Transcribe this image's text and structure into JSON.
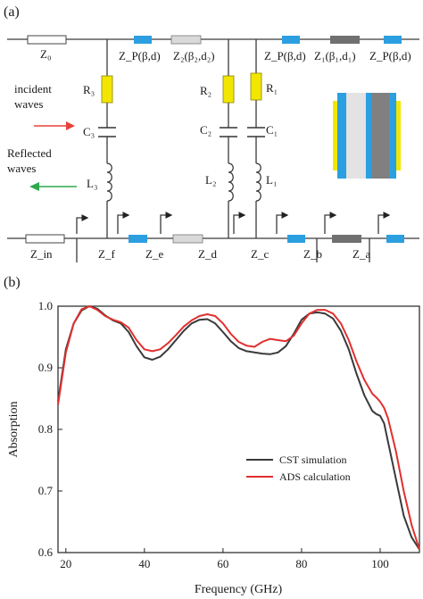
{
  "panel_a": {
    "label": "(a)",
    "z0": "Z₀",
    "zp": "Z_P(β,d)",
    "z2": "Z₂(β₂,d₂)",
    "z1": "Z₁(β₁,d₁)",
    "r3": "R₃",
    "c3": "C₃",
    "l3": "L₃",
    "r2": "R₂",
    "c2": "C₂",
    "l2": "L₂",
    "r1": "R₁",
    "c1": "C₁",
    "l1": "L₁",
    "incident_line1": "incident",
    "incident_line2": "waves",
    "reflected_line1": "Reflected",
    "reflected_line2": "waves",
    "zin": "Z_in",
    "zf": "Z_f",
    "ze": "Z_e",
    "zd": "Z_d",
    "zc": "Z_c",
    "zb": "Z_b",
    "za": "Z_a",
    "colors": {
      "blue_block": "#2b9fe0",
      "light_block": "#d9d9d9",
      "dark_block": "#707070",
      "resistor": "#f2e600",
      "incident_arrow": "#e8423a",
      "reflected_arrow": "#2ea84a"
    }
  },
  "panel_b": {
    "label": "(b)",
    "chart_data": {
      "type": "line",
      "xlabel": "Frequency (GHz)",
      "ylabel": "Absorption",
      "xlim": [
        18,
        110
      ],
      "ylim": [
        0.6,
        1.0
      ],
      "xticks": [
        "20",
        "40",
        "60",
        "80",
        "100"
      ],
      "yticks": [
        "0.6",
        "0.7",
        "0.8",
        "0.9",
        "1.0"
      ],
      "legend_position": "bottom-right",
      "series": [
        {
          "name": "CST simulation",
          "color": "#3a3a3a",
          "x": [
            18,
            20,
            22,
            24,
            26,
            28,
            30,
            32,
            34,
            36,
            38,
            40,
            42,
            44,
            46,
            48,
            50,
            52,
            54,
            56,
            58,
            60,
            62,
            64,
            66,
            68,
            70,
            72,
            74,
            76,
            78,
            80,
            82,
            84,
            86,
            88,
            90,
            92,
            94,
            96,
            98,
            99,
            100,
            101,
            102,
            104,
            106,
            108,
            110
          ],
          "y": [
            0.845,
            0.93,
            0.972,
            0.993,
            1.0,
            0.996,
            0.985,
            0.977,
            0.972,
            0.958,
            0.935,
            0.917,
            0.913,
            0.918,
            0.93,
            0.945,
            0.96,
            0.972,
            0.978,
            0.979,
            0.972,
            0.958,
            0.943,
            0.932,
            0.927,
            0.925,
            0.923,
            0.922,
            0.925,
            0.935,
            0.955,
            0.978,
            0.988,
            0.99,
            0.988,
            0.98,
            0.96,
            0.93,
            0.89,
            0.855,
            0.83,
            0.825,
            0.822,
            0.81,
            0.78,
            0.72,
            0.66,
            0.625,
            0.605
          ]
        },
        {
          "name": "ADS calculation",
          "color": "#e0302f",
          "x": [
            18,
            20,
            22,
            24,
            26,
            28,
            30,
            32,
            34,
            36,
            38,
            40,
            42,
            44,
            46,
            48,
            50,
            52,
            54,
            56,
            58,
            60,
            62,
            64,
            66,
            68,
            70,
            72,
            74,
            76,
            78,
            80,
            82,
            84,
            86,
            88,
            90,
            92,
            94,
            96,
            98,
            99,
            100,
            101,
            102,
            104,
            106,
            108,
            110
          ],
          "y": [
            0.84,
            0.925,
            0.972,
            0.995,
            1.0,
            0.994,
            0.984,
            0.978,
            0.974,
            0.965,
            0.945,
            0.93,
            0.927,
            0.93,
            0.94,
            0.953,
            0.967,
            0.977,
            0.984,
            0.987,
            0.984,
            0.972,
            0.955,
            0.942,
            0.936,
            0.934,
            0.942,
            0.947,
            0.945,
            0.943,
            0.952,
            0.972,
            0.988,
            0.994,
            0.994,
            0.988,
            0.972,
            0.945,
            0.91,
            0.88,
            0.858,
            0.852,
            0.845,
            0.835,
            0.818,
            0.765,
            0.7,
            0.645,
            0.605
          ]
        }
      ]
    }
  }
}
